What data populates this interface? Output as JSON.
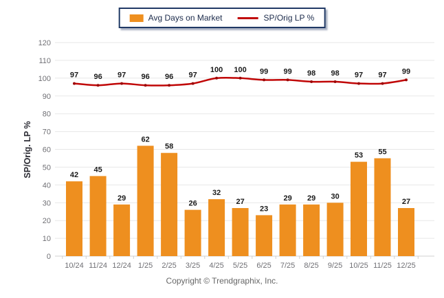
{
  "legend": {
    "series1_label": "Avg Days on Market",
    "series2_label": "SP/Orig LP %"
  },
  "footer": {
    "copyright": "Copyright © Trendgraphix, Inc."
  },
  "colors": {
    "bar": "#EE8F1F",
    "line": "#C00505",
    "line_marker": "#9C0606",
    "gridline": "#E7E7E7",
    "axis_line": "#CFCFCF",
    "tick_label": "#6F6F74",
    "legend_border": "#1F3864"
  },
  "chart_data": {
    "type": "bar",
    "subtype": "bar+line combo",
    "categories": [
      "10/24",
      "11/24",
      "12/24",
      "1/25",
      "2/25",
      "3/25",
      "4/25",
      "5/25",
      "6/25",
      "7/25",
      "8/25",
      "9/25",
      "10/25",
      "11/25",
      "12/25"
    ],
    "series": [
      {
        "name": "Avg Days on Market",
        "type": "bar",
        "color": "#EE8F1F",
        "values": [
          42,
          45,
          29,
          62,
          58,
          26,
          32,
          27,
          23,
          29,
          29,
          30,
          53,
          55,
          27
        ]
      },
      {
        "name": "SP/Orig LP %",
        "type": "line",
        "color": "#C00505",
        "values": [
          97,
          96,
          97,
          96,
          96,
          97,
          100,
          100,
          99,
          99,
          98,
          98,
          97,
          97,
          99
        ]
      }
    ],
    "title": "",
    "xlabel": "",
    "ylabel": "SP/Orig. LP %",
    "ylim": [
      0,
      120
    ],
    "y_ticks": [
      0,
      10,
      20,
      30,
      40,
      50,
      60,
      70,
      80,
      90,
      100,
      110,
      120
    ],
    "grid": true,
    "data_labels": true,
    "legend_position": "top-center"
  }
}
